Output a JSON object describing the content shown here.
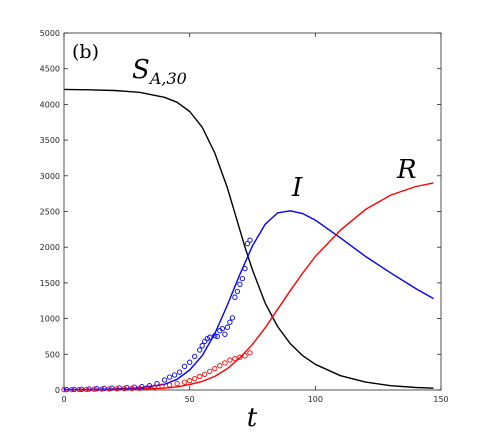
{
  "chart_data": {
    "type": "line",
    "panel_label": "(b)",
    "xlabel": "t",
    "ylabel": "",
    "xlim": [
      0,
      150
    ],
    "ylim": [
      0,
      5000
    ],
    "x_ticks": [
      0,
      50,
      100,
      150
    ],
    "y_ticks": [
      0,
      500,
      1000,
      1500,
      2000,
      2500,
      3000,
      3500,
      4000,
      4500,
      5000
    ],
    "grid": false,
    "legend": "none",
    "annotations": [
      {
        "text": "S",
        "subscript": "A,30",
        "near_series": "S"
      },
      {
        "text": "I",
        "near_series": "I"
      },
      {
        "text": "R",
        "near_series": "R"
      }
    ],
    "series": [
      {
        "id": "S",
        "color": "#000000",
        "style": "line",
        "x": [
          0,
          10,
          20,
          30,
          40,
          45,
          50,
          55,
          60,
          65,
          70,
          72,
          75,
          80,
          85,
          90,
          95,
          100,
          110,
          120,
          130,
          140,
          147
        ],
        "y": [
          4210,
          4205,
          4195,
          4170,
          4100,
          4030,
          3900,
          3680,
          3320,
          2830,
          2240,
          2000,
          1680,
          1220,
          890,
          650,
          480,
          360,
          200,
          110,
          60,
          35,
          25
        ]
      },
      {
        "id": "I",
        "color": "#0000ff",
        "style": "line",
        "x": [
          0,
          10,
          20,
          30,
          40,
          45,
          50,
          55,
          60,
          65,
          70,
          75,
          80,
          85,
          90,
          95,
          100,
          110,
          120,
          130,
          140,
          147
        ],
        "y": [
          5,
          8,
          15,
          30,
          80,
          150,
          280,
          480,
          790,
          1190,
          1620,
          2020,
          2320,
          2480,
          2510,
          2470,
          2380,
          2130,
          1870,
          1640,
          1420,
          1280
        ]
      },
      {
        "id": "R",
        "color": "#ff0000",
        "style": "line",
        "x": [
          0,
          10,
          20,
          30,
          40,
          45,
          50,
          55,
          60,
          65,
          70,
          75,
          80,
          85,
          90,
          95,
          100,
          110,
          120,
          130,
          140,
          147
        ],
        "y": [
          2,
          3,
          6,
          12,
          25,
          45,
          75,
          120,
          190,
          300,
          450,
          640,
          870,
          1130,
          1390,
          1640,
          1870,
          2240,
          2530,
          2730,
          2850,
          2900
        ]
      },
      {
        "id": "I_data",
        "color": "#0000ff",
        "style": "markers",
        "x": [
          1,
          4,
          7,
          10,
          13,
          16,
          19,
          22,
          25,
          28,
          31,
          34,
          37,
          40,
          42,
          44,
          46,
          48,
          50,
          52,
          54,
          55,
          56,
          57,
          58,
          60,
          61,
          62,
          63,
          64,
          65,
          66,
          67,
          68,
          69,
          70,
          71,
          72,
          73,
          74
        ],
        "y": [
          5,
          8,
          10,
          14,
          18,
          22,
          26,
          30,
          34,
          40,
          48,
          60,
          90,
          140,
          180,
          210,
          250,
          330,
          390,
          470,
          560,
          620,
          680,
          720,
          740,
          760,
          750,
          830,
          860,
          780,
          880,
          950,
          1010,
          1300,
          1380,
          1480,
          1560,
          1700,
          2050,
          2100
        ]
      },
      {
        "id": "R_data",
        "color": "#ff0000",
        "style": "markers",
        "x": [
          0,
          3,
          6,
          9,
          12,
          15,
          18,
          21,
          24,
          27,
          30,
          33,
          36,
          39,
          42,
          45,
          48,
          50,
          52,
          54,
          56,
          58,
          60,
          62,
          64,
          66,
          68,
          70,
          72,
          74
        ],
        "y": [
          5,
          6,
          7,
          9,
          11,
          13,
          15,
          17,
          19,
          22,
          25,
          30,
          40,
          55,
          70,
          90,
          110,
          130,
          160,
          190,
          220,
          260,
          300,
          340,
          380,
          420,
          440,
          460,
          480,
          520
        ]
      }
    ]
  }
}
